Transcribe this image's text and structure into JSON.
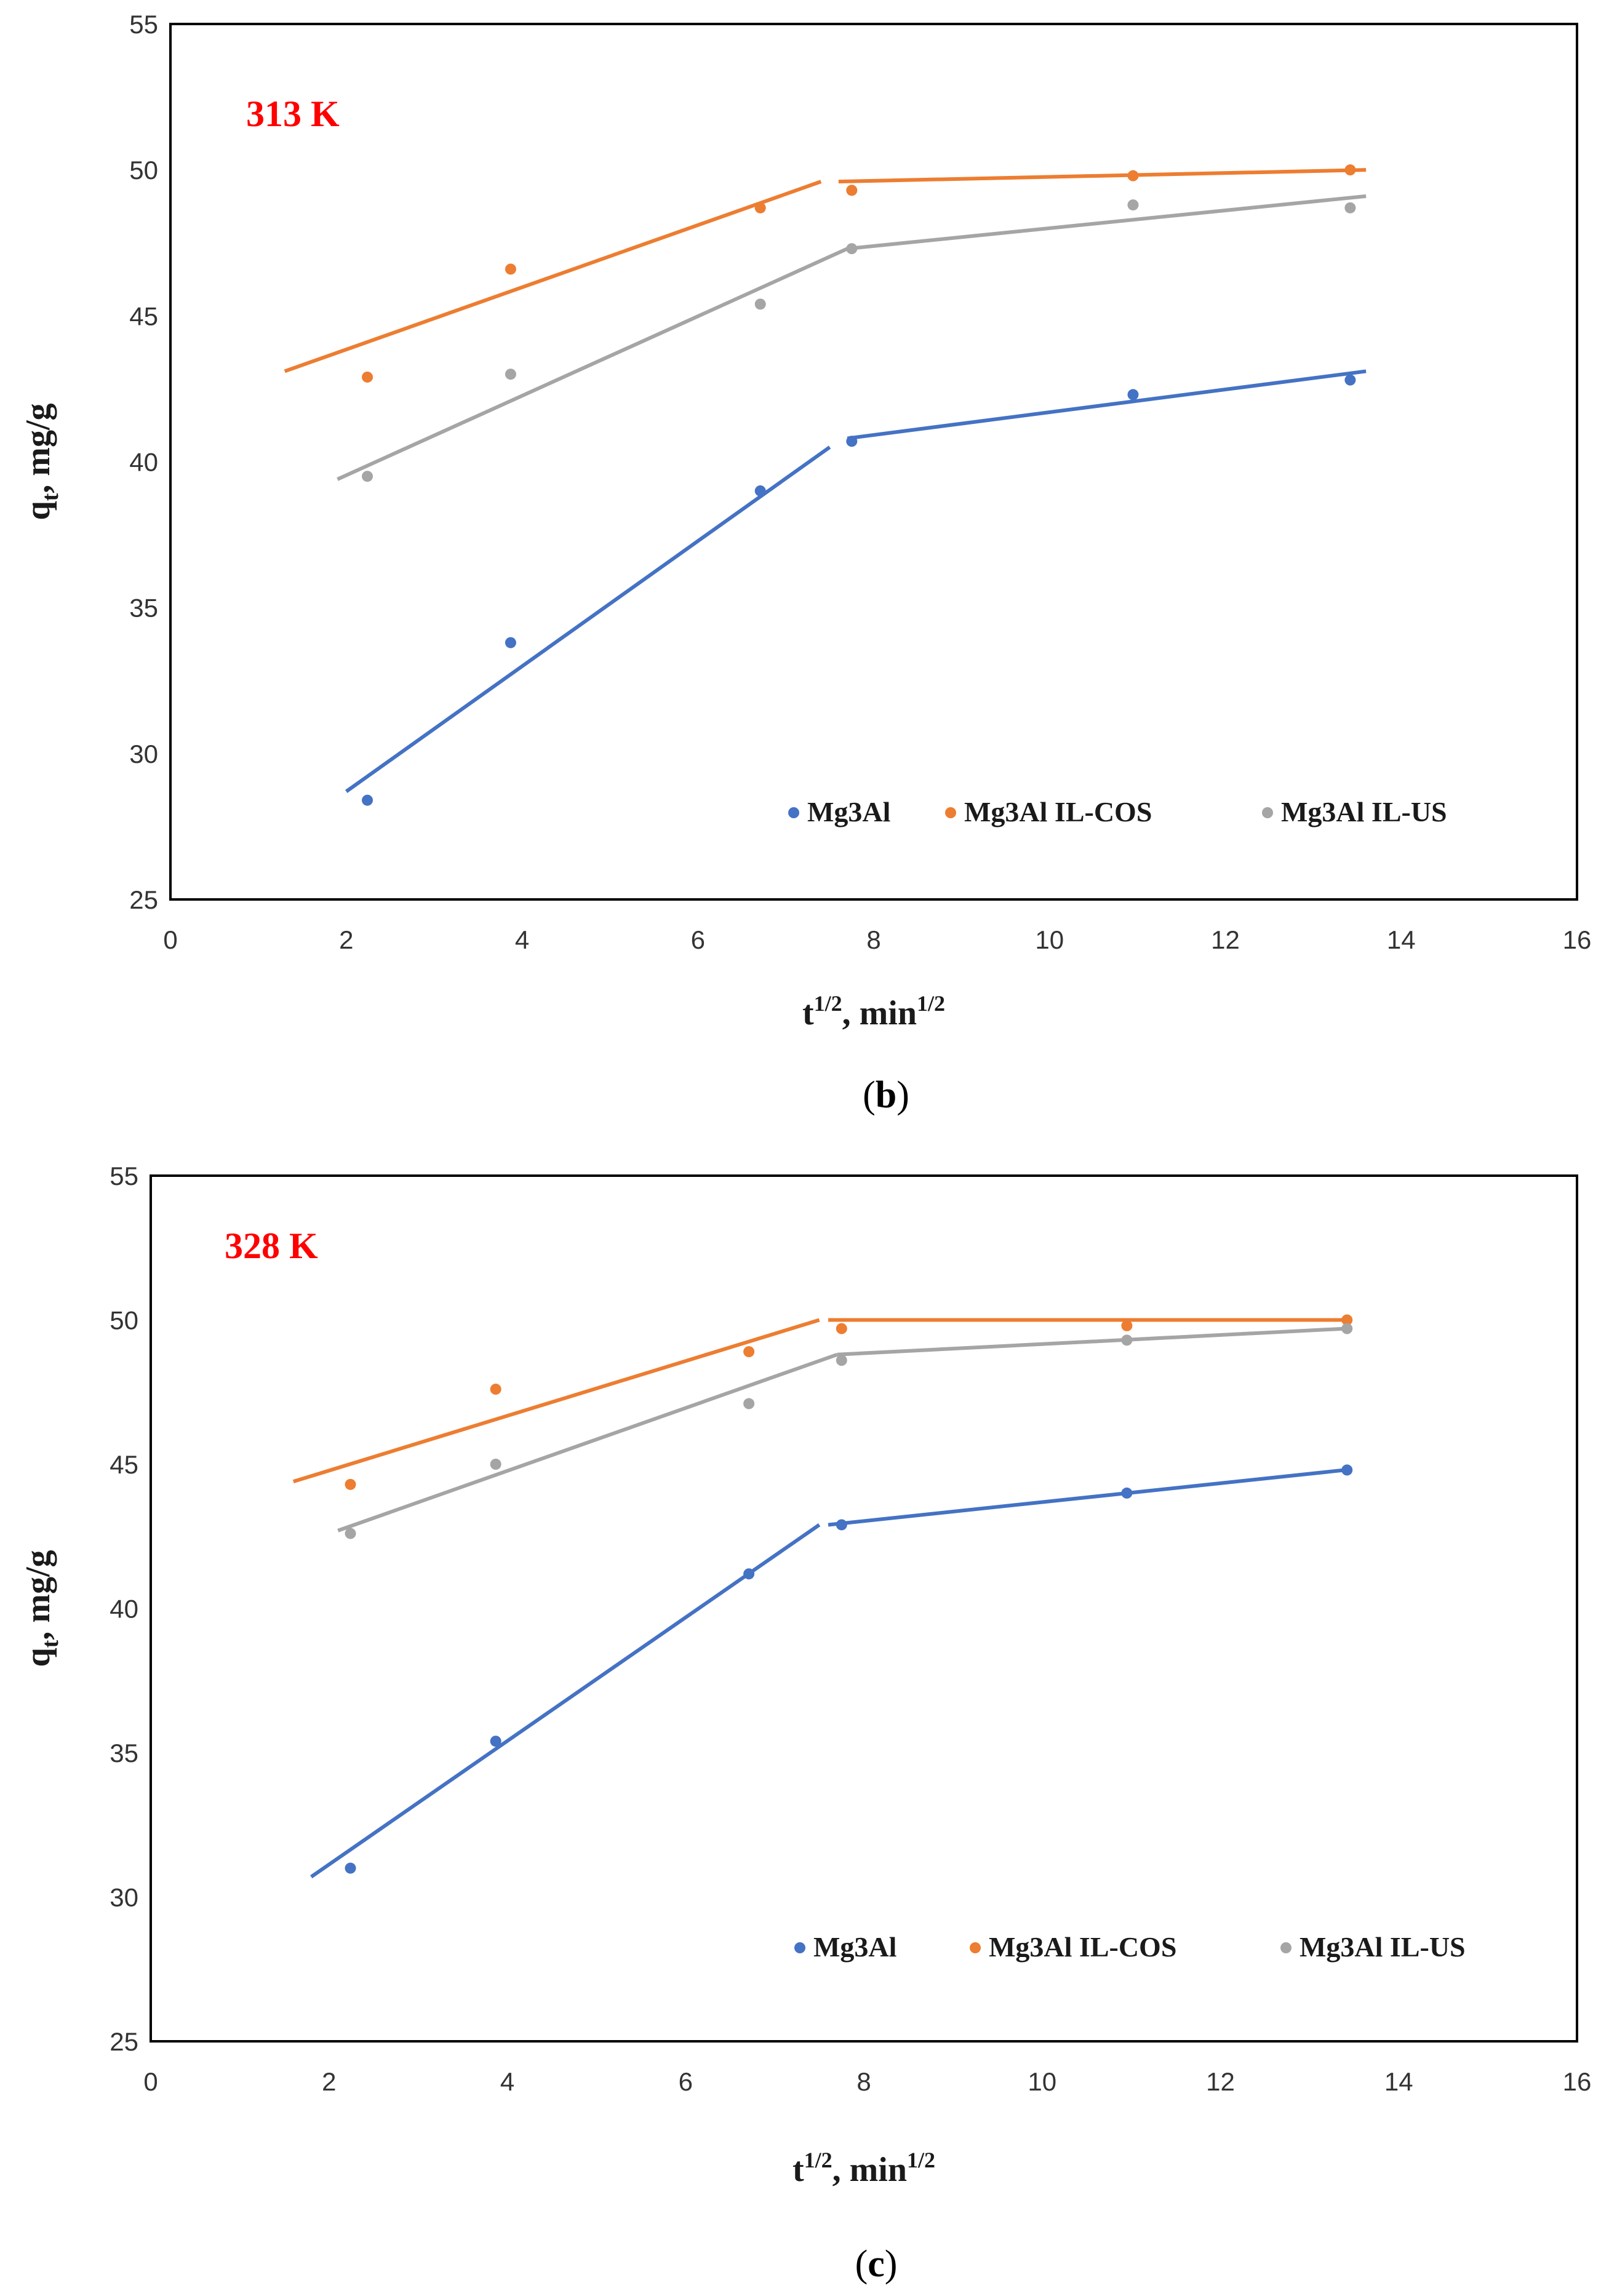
{
  "chart_data": [
    {
      "type": "scatter",
      "panel_label": "b",
      "annotation": "313 K",
      "xlabel": "t",
      "xlabel_sup1": "1/2",
      "xlabel_mid": ", min",
      "xlabel_sup2": "1/2",
      "ylabel": "q",
      "ylabel_sub": "t",
      "ylabel_rest": ", mg/g",
      "xlim": [
        0,
        16
      ],
      "ylim": [
        25,
        55
      ],
      "xticks": [
        0,
        2,
        4,
        6,
        8,
        10,
        12,
        14,
        16
      ],
      "yticks": [
        25,
        30,
        35,
        40,
        45,
        50,
        55
      ],
      "legend_position": "lower-right",
      "series": [
        {
          "name": "Mg3Al",
          "color": "#4472C4",
          "points": [
            [
              2.24,
              28.4
            ],
            [
              3.87,
              33.8
            ],
            [
              6.71,
              39.0
            ],
            [
              7.75,
              40.7
            ],
            [
              10.95,
              42.3
            ],
            [
              13.42,
              42.8
            ]
          ],
          "fits": [
            [
              [
                2.0,
                28.7
              ],
              [
                7.5,
                40.5
              ]
            ],
            [
              [
                7.7,
                40.8
              ],
              [
                13.6,
                43.1
              ]
            ]
          ]
        },
        {
          "name": "Mg3Al IL-COS",
          "color": "#ED7D31",
          "points": [
            [
              2.24,
              42.9
            ],
            [
              3.87,
              46.6
            ],
            [
              6.71,
              48.7
            ],
            [
              7.75,
              49.3
            ],
            [
              10.95,
              49.8
            ],
            [
              13.42,
              50.0
            ]
          ],
          "fits": [
            [
              [
                1.3,
                43.1
              ],
              [
                7.4,
                49.6
              ]
            ],
            [
              [
                7.6,
                49.6
              ],
              [
                13.6,
                50.0
              ]
            ]
          ]
        },
        {
          "name": "Mg3Al IL-US",
          "color": "#A5A5A5",
          "points": [
            [
              2.24,
              39.5
            ],
            [
              3.87,
              43.0
            ],
            [
              6.71,
              45.4
            ],
            [
              7.75,
              47.3
            ],
            [
              10.95,
              48.8
            ],
            [
              13.42,
              48.7
            ]
          ],
          "fits": [
            [
              [
                1.9,
                39.4
              ],
              [
                7.7,
                47.3
              ]
            ],
            [
              [
                7.7,
                47.3
              ],
              [
                13.6,
                49.1
              ]
            ]
          ]
        }
      ]
    },
    {
      "type": "scatter",
      "panel_label": "c",
      "annotation": "328 K",
      "xlabel": "t",
      "xlabel_sup1": "1/2",
      "xlabel_mid": ", min",
      "xlabel_sup2": "1/2",
      "ylabel": "q",
      "ylabel_sub": "t",
      "ylabel_rest": ", mg/g",
      "xlim": [
        0,
        16
      ],
      "ylim": [
        25,
        55
      ],
      "xticks": [
        0,
        2,
        4,
        6,
        8,
        10,
        12,
        14,
        16
      ],
      "yticks": [
        25,
        30,
        35,
        40,
        45,
        50,
        55
      ],
      "legend_position": "lower-right",
      "series": [
        {
          "name": "Mg3Al",
          "color": "#4472C4",
          "points": [
            [
              2.24,
              31.0
            ],
            [
              3.87,
              35.4
            ],
            [
              6.71,
              41.2
            ],
            [
              7.75,
              42.9
            ],
            [
              10.95,
              44.0
            ],
            [
              13.42,
              44.8
            ]
          ],
          "fits": [
            [
              [
                1.8,
                30.7
              ],
              [
                7.5,
                42.9
              ]
            ],
            [
              [
                7.6,
                42.9
              ],
              [
                13.4,
                44.8
              ]
            ]
          ]
        },
        {
          "name": "Mg3Al IL-COS",
          "color": "#ED7D31",
          "points": [
            [
              2.24,
              44.3
            ],
            [
              3.87,
              47.6
            ],
            [
              6.71,
              48.9
            ],
            [
              7.75,
              49.7
            ],
            [
              10.95,
              49.8
            ],
            [
              13.42,
              50.0
            ]
          ],
          "fits": [
            [
              [
                1.6,
                44.4
              ],
              [
                7.5,
                50.0
              ]
            ],
            [
              [
                7.6,
                50.0
              ],
              [
                13.4,
                50.0
              ]
            ]
          ]
        },
        {
          "name": "Mg3Al IL-US",
          "color": "#A5A5A5",
          "points": [
            [
              2.24,
              42.6
            ],
            [
              3.87,
              45.0
            ],
            [
              6.71,
              47.1
            ],
            [
              7.75,
              48.6
            ],
            [
              10.95,
              49.3
            ],
            [
              13.42,
              49.7
            ]
          ],
          "fits": [
            [
              [
                2.1,
                42.7
              ],
              [
                7.7,
                48.8
              ]
            ],
            [
              [
                7.7,
                48.8
              ],
              [
                13.4,
                49.7
              ]
            ]
          ]
        }
      ]
    }
  ]
}
